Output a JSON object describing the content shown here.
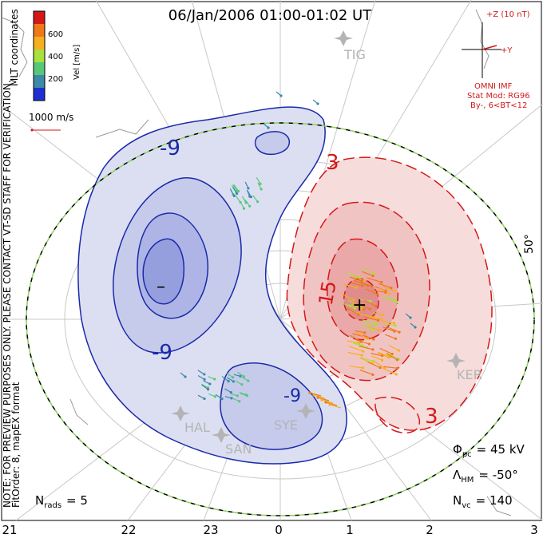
{
  "title": "06/Jan/2006 01:00-01:02 UT",
  "side_note": "NOTE: FOR PREVIEW PURPOSES ONLY. PLEASE CONTACT VT-SD STAFF FOR VERIFICATION.",
  "fitorder_note": "FitOrder: 8, mapEX format",
  "coord_label": "MLT coordinates",
  "colorbar": {
    "axis_label": "Vel [m/s]",
    "ticks": [
      "600",
      "400",
      "200"
    ],
    "colors": [
      "#d41818",
      "#f07818",
      "#f4b020",
      "#a8e040",
      "#58c878",
      "#3a8aa8",
      "#2030d0"
    ]
  },
  "scale_vector_label": "1000 m/s",
  "imf": {
    "z_label": "+Z (10 nT)",
    "y_label": "+Y",
    "source": "OMNI IMF",
    "model": "Stat Mod: RG96",
    "condition": "By-, 6<BT<12"
  },
  "stations": [
    "TIG",
    "HAL",
    "SAN",
    "SYE",
    "KER"
  ],
  "latitude_label": "50°",
  "contour_labels": {
    "neg_outer": "-9",
    "neg_lower": "-9",
    "neg_small": "-9",
    "pos_outer": "3",
    "pos_lower": "3",
    "pos_inner": "15",
    "min_marker": "–",
    "max_marker": "+"
  },
  "stats": {
    "phi_pc": {
      "symbol": "Φ",
      "sub": "pc",
      "value": "= 45 kV"
    },
    "lambda_hm": {
      "symbol": "Λ",
      "sub": "HM",
      "value": "= -50°"
    },
    "n_vc": {
      "symbol": "N",
      "sub": "vc",
      "value": "= 140"
    },
    "n_rads": {
      "symbol": "N",
      "sub": "rads",
      "value": "= 5"
    }
  },
  "mlt_labels": [
    "21",
    "22",
    "23",
    "0",
    "1",
    "2",
    "3"
  ],
  "colors": {
    "negative_contour": "#1a2aa8",
    "positive_contour": "#d41818",
    "negative_fill": "#dcdff2",
    "positive_fill": "#f7dcdc",
    "boundary_dash": "#8cd25a",
    "grid": "#c8c8c8",
    "station": "#b4b4b4"
  }
}
